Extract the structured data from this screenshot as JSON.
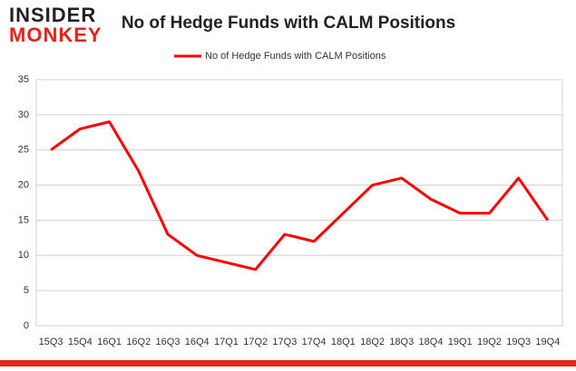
{
  "logo": {
    "top": "INSIDER",
    "bottom": "MONKEY"
  },
  "chart_data": {
    "type": "line",
    "title": "No of Hedge Funds with CALM Positions",
    "categories": [
      "15Q3",
      "15Q4",
      "16Q1",
      "16Q2",
      "16Q3",
      "16Q4",
      "17Q1",
      "17Q2",
      "17Q3",
      "17Q4",
      "18Q1",
      "18Q2",
      "18Q3",
      "18Q4",
      "19Q1",
      "19Q2",
      "19Q3",
      "19Q4"
    ],
    "series": [
      {
        "name": "No of Hedge Funds with CALM Positions",
        "color": "#ff0000",
        "values": [
          25,
          28,
          29,
          22,
          13,
          10,
          9,
          8,
          13,
          12,
          16,
          20,
          21,
          18,
          16,
          16,
          21,
          15
        ]
      }
    ],
    "ylim": [
      0,
      35
    ],
    "yticks": [
      0,
      5,
      10,
      15,
      20,
      25,
      30,
      35
    ],
    "grid": true,
    "legend": "top"
  }
}
